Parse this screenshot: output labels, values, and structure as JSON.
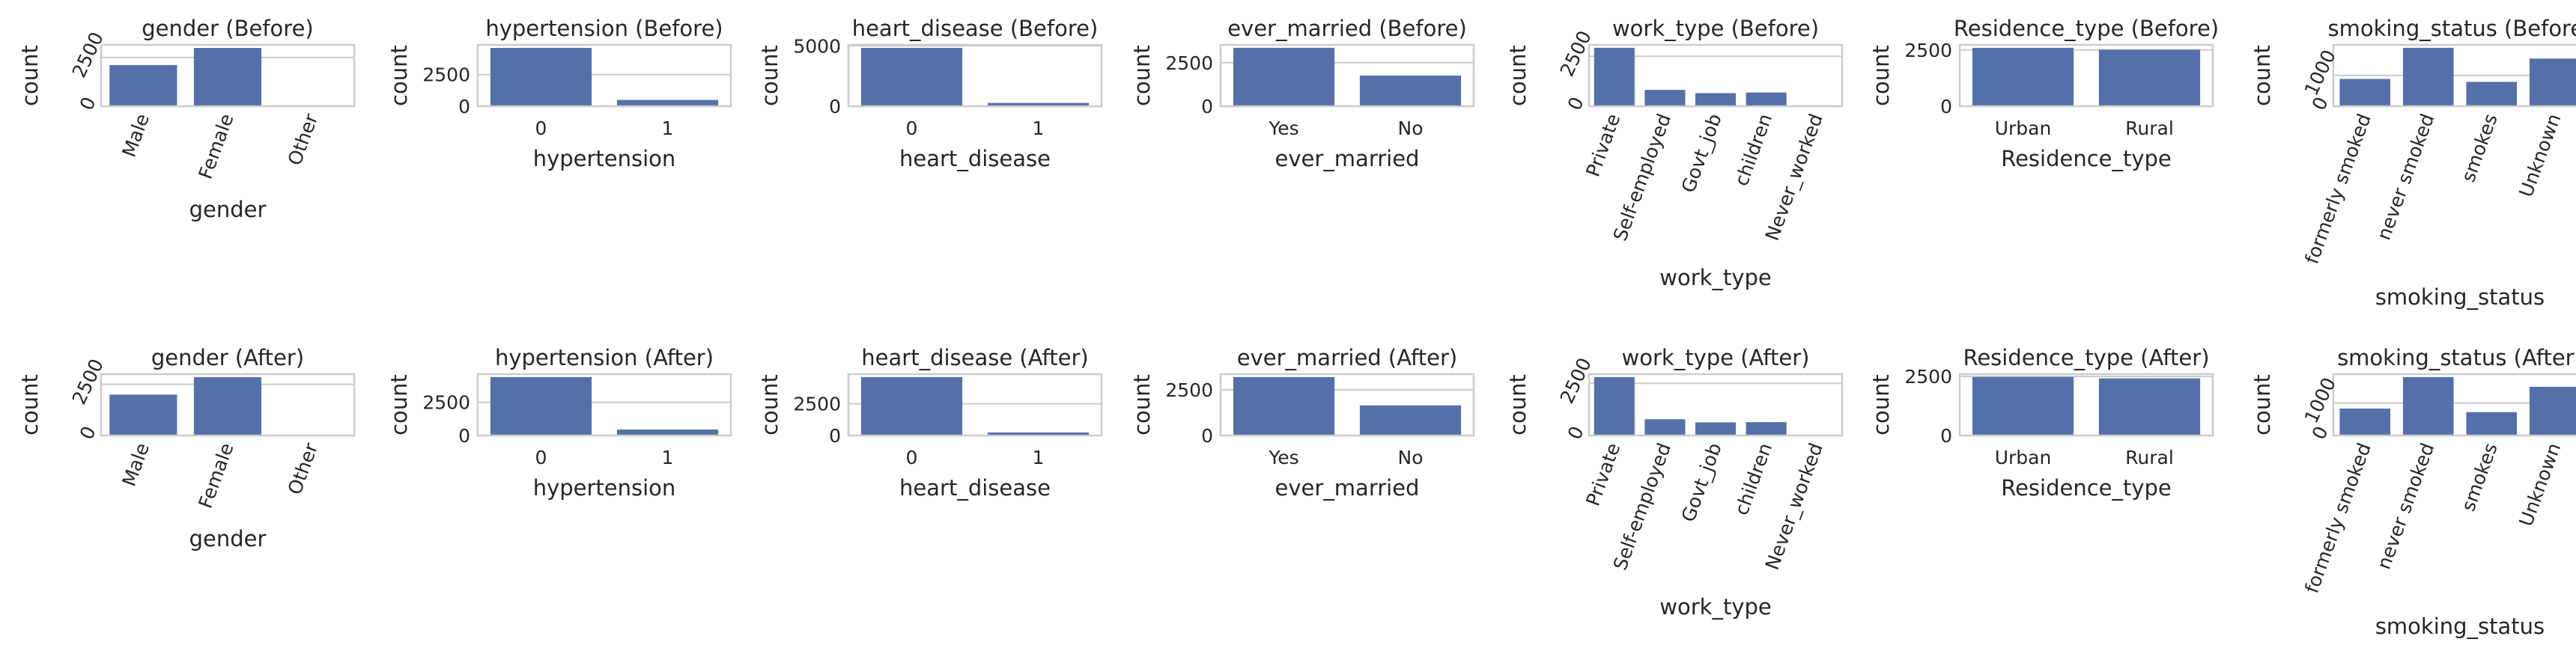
{
  "colors": {
    "bar": "#5470a8",
    "grid": "#cccccc",
    "text": "#262626"
  },
  "chart_data": [
    {
      "type": "bar",
      "title": "gender (Before)",
      "xlabel": "gender",
      "ylabel": "count",
      "categories": [
        "Male",
        "Female",
        "Other"
      ],
      "values": [
        2115,
        2994,
        1
      ],
      "ylim": [
        0,
        3150
      ],
      "yticks": [
        0,
        2500
      ],
      "rotate_x": true,
      "rotate_y": true
    },
    {
      "type": "bar",
      "title": "hypertension (Before)",
      "xlabel": "hypertension",
      "ylabel": "count",
      "categories": [
        "0",
        "1"
      ],
      "values": [
        4612,
        498
      ],
      "ylim": [
        0,
        4850
      ],
      "yticks": [
        0,
        2500
      ],
      "rotate_x": false,
      "rotate_y": false
    },
    {
      "type": "bar",
      "title": "heart_disease (Before)",
      "xlabel": "heart_disease",
      "ylabel": "count",
      "categories": [
        "0",
        "1"
      ],
      "values": [
        4834,
        276
      ],
      "ylim": [
        0,
        5080
      ],
      "yticks": [
        0,
        5000
      ],
      "rotate_x": false,
      "rotate_y": false
    },
    {
      "type": "bar",
      "title": "ever_married (Before)",
      "xlabel": "ever_married",
      "ylabel": "count",
      "categories": [
        "Yes",
        "No"
      ],
      "values": [
        3353,
        1757
      ],
      "ylim": [
        0,
        3520
      ],
      "yticks": [
        0,
        2500
      ],
      "rotate_x": false,
      "rotate_y": false
    },
    {
      "type": "bar",
      "title": "work_type (Before)",
      "xlabel": "work_type",
      "ylabel": "count",
      "categories": [
        "Private",
        "Self-employed",
        "Govt_job",
        "children",
        "Never_worked"
      ],
      "values": [
        2925,
        819,
        657,
        687,
        22
      ],
      "ylim": [
        0,
        3070
      ],
      "yticks": [
        0,
        2500
      ],
      "rotate_x": true,
      "rotate_y": true
    },
    {
      "type": "bar",
      "title": "Residence_type (Before)",
      "xlabel": "Residence_type",
      "ylabel": "count",
      "categories": [
        "Urban",
        "Rural"
      ],
      "values": [
        2596,
        2514
      ],
      "ylim": [
        0,
        2726
      ],
      "yticks": [
        0,
        2500
      ],
      "rotate_x": false,
      "rotate_y": false
    },
    {
      "type": "bar",
      "title": "smoking_status (Before)",
      "xlabel": "smoking_status",
      "ylabel": "count",
      "categories": [
        "formerly smoked",
        "never smoked",
        "smokes",
        "Unknown"
      ],
      "values": [
        885,
        1892,
        789,
        1544
      ],
      "ylim": [
        0,
        1987
      ],
      "yticks": [
        0,
        1000
      ],
      "rotate_x": true,
      "rotate_y": true
    },
    {
      "type": "bar",
      "title": "gender (After)",
      "xlabel": "gender",
      "ylabel": "count",
      "categories": [
        "Male",
        "Female",
        "Other"
      ],
      "values": [
        2000,
        2850,
        1
      ],
      "ylim": [
        0,
        3000
      ],
      "yticks": [
        0,
        2500
      ],
      "rotate_x": true,
      "rotate_y": true
    },
    {
      "type": "bar",
      "title": "hypertension (After)",
      "xlabel": "hypertension",
      "ylabel": "count",
      "categories": [
        "0",
        "1"
      ],
      "values": [
        4400,
        450
      ],
      "ylim": [
        0,
        4620
      ],
      "yticks": [
        0,
        2500
      ],
      "rotate_x": false,
      "rotate_y": false
    },
    {
      "type": "bar",
      "title": "heart_disease (After)",
      "xlabel": "heart_disease",
      "ylabel": "count",
      "categories": [
        "0",
        "1"
      ],
      "values": [
        4610,
        240
      ],
      "ylim": [
        0,
        4840
      ],
      "yticks": [
        0,
        2500
      ],
      "rotate_x": false,
      "rotate_y": false
    },
    {
      "type": "bar",
      "title": "ever_married (After)",
      "xlabel": "ever_married",
      "ylabel": "count",
      "categories": [
        "Yes",
        "No"
      ],
      "values": [
        3200,
        1650
      ],
      "ylim": [
        0,
        3360
      ],
      "yticks": [
        0,
        2500
      ],
      "rotate_x": false,
      "rotate_y": false
    },
    {
      "type": "bar",
      "title": "work_type (After)",
      "xlabel": "work_type",
      "ylabel": "count",
      "categories": [
        "Private",
        "Self-employed",
        "Govt_job",
        "children",
        "Never_worked"
      ],
      "values": [
        2800,
        780,
        630,
        640,
        20
      ],
      "ylim": [
        0,
        2940
      ],
      "yticks": [
        0,
        2500
      ],
      "rotate_x": true,
      "rotate_y": true
    },
    {
      "type": "bar",
      "title": "Residence_type (After)",
      "xlabel": "Residence_type",
      "ylabel": "count",
      "categories": [
        "Urban",
        "Rural"
      ],
      "values": [
        2480,
        2420
      ],
      "ylim": [
        0,
        2600
      ],
      "yticks": [
        0,
        2500
      ],
      "rotate_x": false,
      "rotate_y": false
    },
    {
      "type": "bar",
      "title": "smoking_status (After)",
      "xlabel": "smoking_status",
      "ylabel": "count",
      "categories": [
        "formerly smoked",
        "never smoked",
        "smokes",
        "Unknown"
      ],
      "values": [
        830,
        1800,
        720,
        1500
      ],
      "ylim": [
        0,
        1890
      ],
      "yticks": [
        0,
        1000
      ],
      "rotate_x": true,
      "rotate_y": true
    }
  ]
}
